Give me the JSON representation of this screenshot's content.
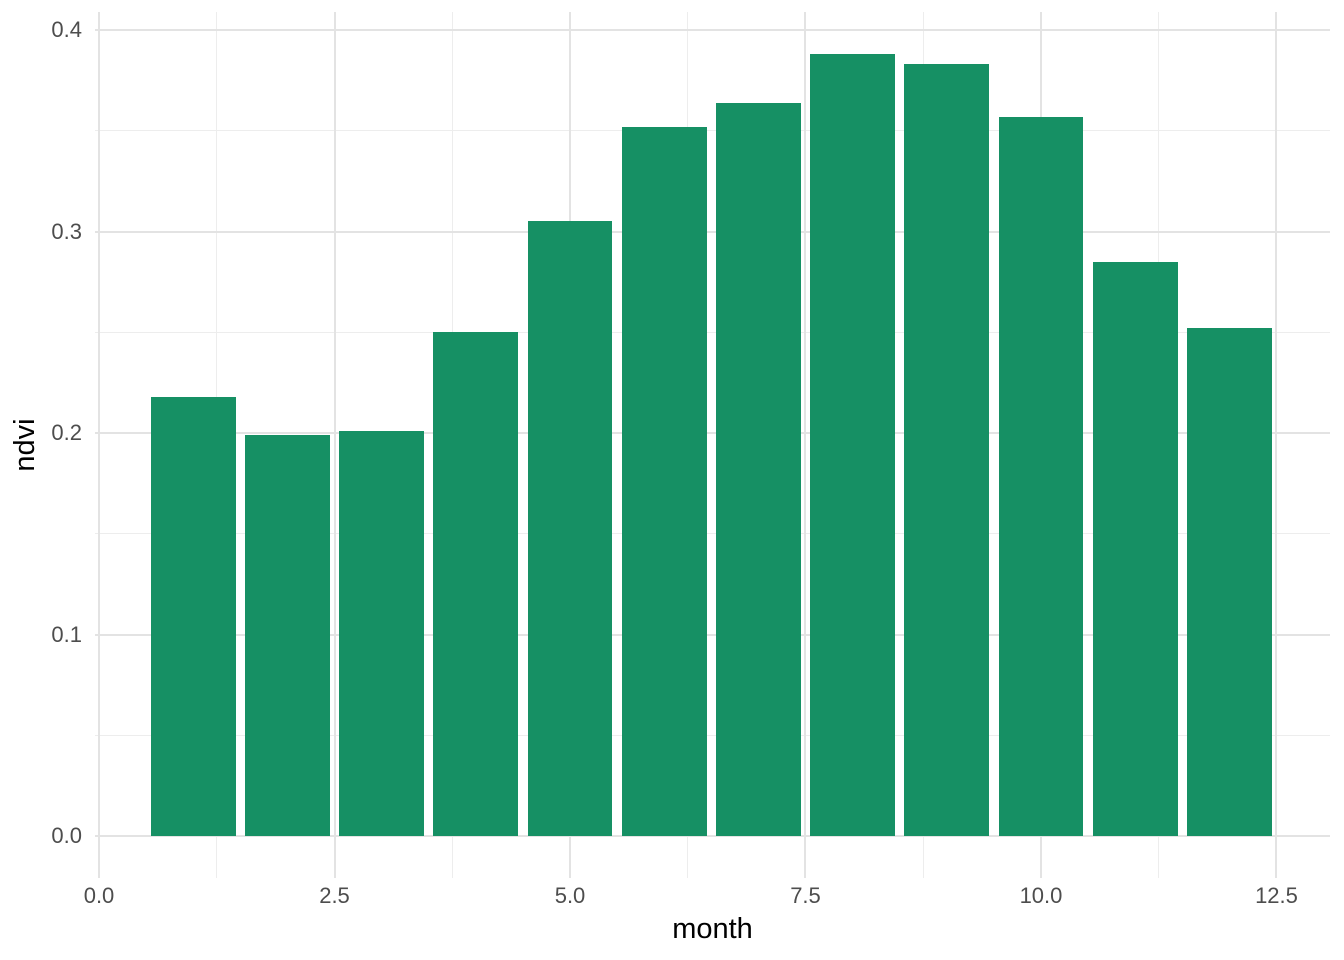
{
  "chart_data": {
    "type": "bar",
    "title": "",
    "xlabel": "month",
    "ylabel": "ndvi",
    "x": [
      1,
      2,
      3,
      4,
      5,
      6,
      7,
      8,
      9,
      10,
      11,
      12
    ],
    "values": [
      0.218,
      0.199,
      0.201,
      0.25,
      0.305,
      0.352,
      0.364,
      0.388,
      0.383,
      0.357,
      0.285,
      0.252
    ],
    "bar_width": 0.9,
    "bar_color": "#169064",
    "xlim": [
      -0.0425,
      13.068
    ],
    "ylim": [
      -0.0207,
      0.4089
    ],
    "x_major_ticks": [
      0.0,
      2.5,
      5.0,
      7.5,
      10.0,
      12.5
    ],
    "x_tick_labels": [
      "0.0",
      "2.5",
      "5.0",
      "7.5",
      "10.0",
      "12.5"
    ],
    "x_minor_ticks": [
      1.25,
      3.75,
      6.25,
      8.75,
      11.25
    ],
    "y_major_ticks": [
      0.0,
      0.1,
      0.2,
      0.3,
      0.4
    ],
    "y_tick_labels": [
      "0.0",
      "0.1",
      "0.2",
      "0.3",
      "0.4"
    ],
    "y_minor_ticks": [
      0.05,
      0.15,
      0.25,
      0.35
    ],
    "grid": true,
    "legend": false,
    "style": {
      "background": "#ffffff",
      "grid_major_color": "#e3e3e3",
      "grid_minor_color": "#ededed",
      "tick_label_color": "#4d4d4d",
      "axis_title_color": "#000000"
    }
  }
}
